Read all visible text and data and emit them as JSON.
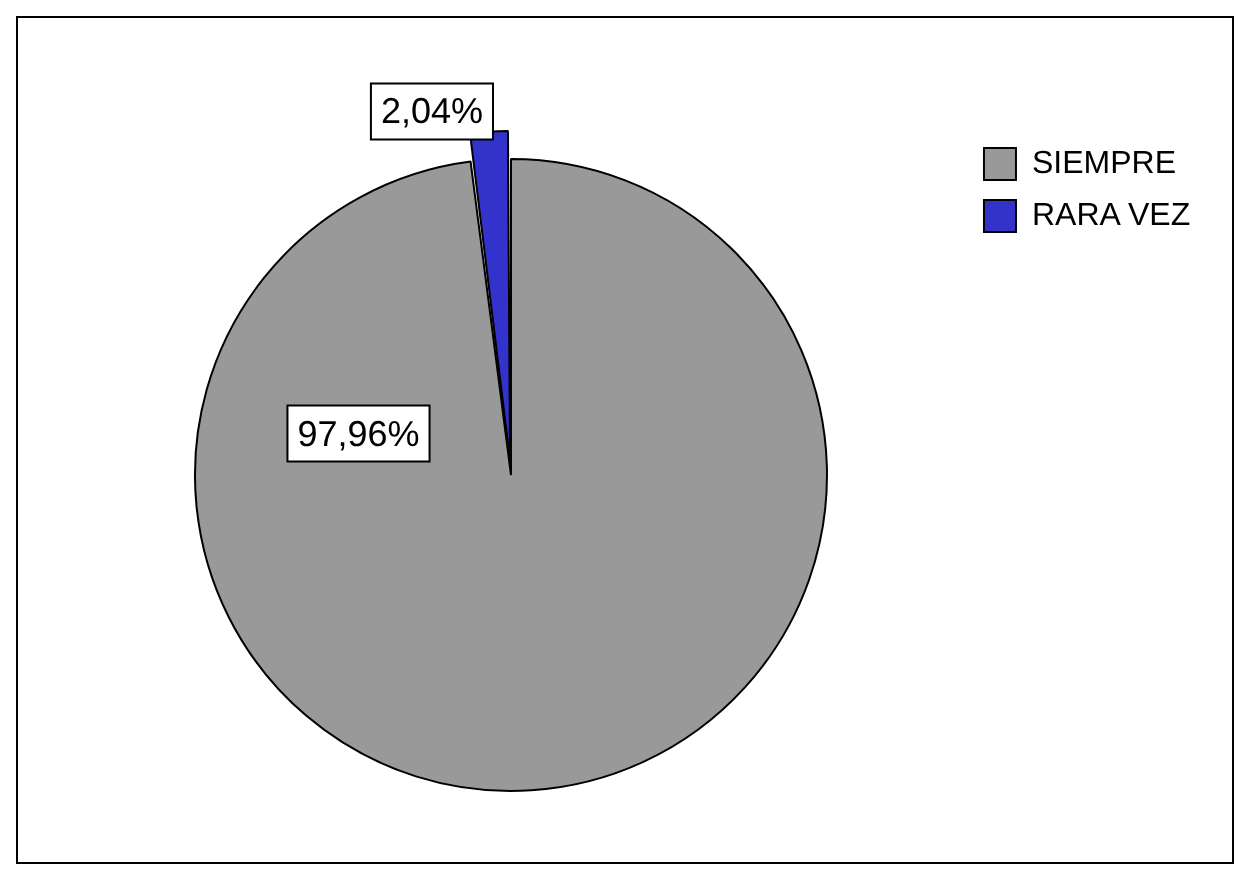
{
  "chart_data": {
    "type": "pie",
    "categories": [
      "SIEMPRE",
      "RARA VEZ"
    ],
    "values": [
      97.96,
      2.04
    ],
    "colors": [
      "#999999",
      "#3333cc"
    ],
    "value_labels": [
      "97,96%",
      "2,04%"
    ],
    "legend": "top right"
  }
}
